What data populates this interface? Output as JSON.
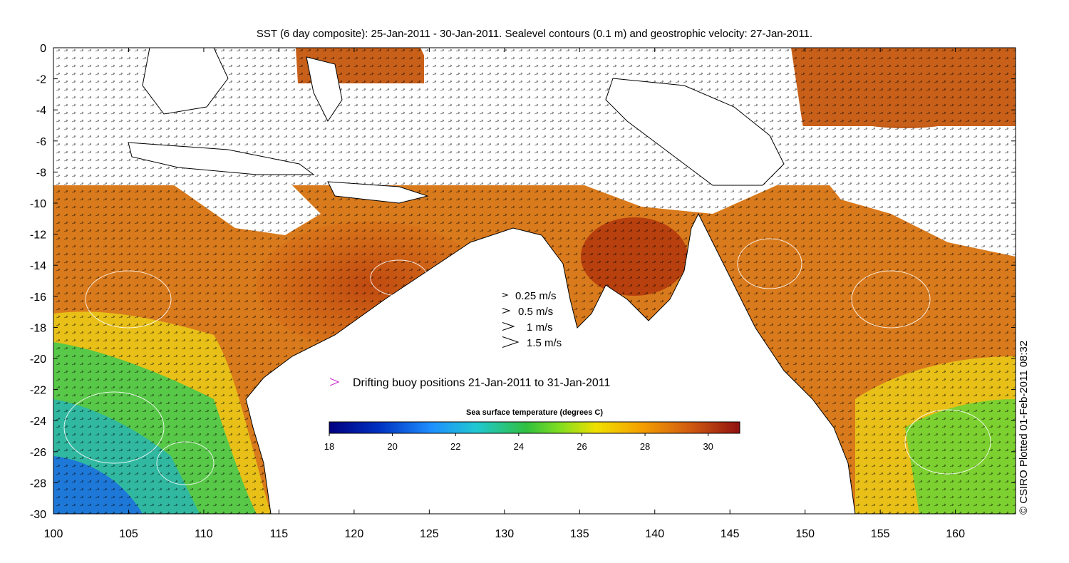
{
  "title": "SST (6 day composite): 25-Jan-2011 - 30-Jan-2011. Sealevel contours (0.1 m) and geostrophic velocity: 27-Jan-2011.",
  "credit": "© CSIRO Plotted 01-Feb-2011 08:32",
  "axes": {
    "x_ticks": [
      "100",
      "105",
      "110",
      "115",
      "120",
      "125",
      "130",
      "135",
      "140",
      "145",
      "150",
      "155",
      "160"
    ],
    "y_ticks": [
      "0",
      "-2",
      "-4",
      "-6",
      "-8",
      "-10",
      "-12",
      "-14",
      "-16",
      "-18",
      "-20",
      "-22",
      "-24",
      "-26",
      "-28",
      "-30"
    ],
    "lon_range": [
      100,
      164
    ],
    "lat_range": [
      -30,
      0
    ]
  },
  "velocity_legend": {
    "items": [
      {
        "label": "0.25 m/s",
        "speed": 0.25
      },
      {
        "label": "0.5 m/s",
        "speed": 0.5
      },
      {
        "label": "1 m/s",
        "speed": 1
      },
      {
        "label": "1.5 m/s",
        "speed": 1.5
      }
    ]
  },
  "buoy_legend": {
    "label": "Drifting buoy positions 21-Jan-2011 to 31-Jan-2011",
    "color": "#cc33cc"
  },
  "colorbar": {
    "title": "Sea surface temperature (degrees C)",
    "ticks": [
      "18",
      "20",
      "22",
      "24",
      "26",
      "28",
      "30"
    ],
    "range": [
      18,
      31
    ]
  }
}
